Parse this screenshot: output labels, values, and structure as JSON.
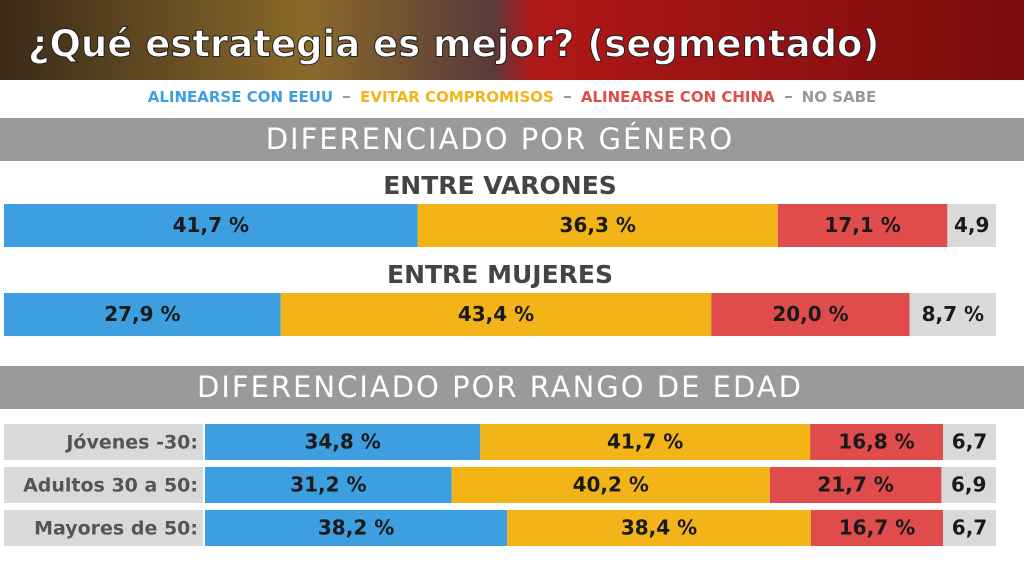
{
  "title": "¿Qué estrategia es mejor? (segmentado)",
  "chart_data": [
    {
      "type": "bar",
      "stacked": true,
      "orientation": "horizontal",
      "title": "DIFERENCIADO POR GÉNERO",
      "xlim": [
        0,
        100
      ],
      "categories": [
        "ENTRE VARONES",
        "ENTRE MUJERES"
      ],
      "series": [
        {
          "name": "ALINEARSE CON EEUU",
          "color": "#3d9fe0",
          "values": [
            41.7,
            27.9
          ],
          "value_labels": [
            "41,7 %",
            "27,9 %"
          ]
        },
        {
          "name": "EVITAR COMPROMISOS",
          "color": "#f2b416",
          "values": [
            36.3,
            43.4
          ],
          "value_labels": [
            "36,3 %",
            "43,4 %"
          ]
        },
        {
          "name": "ALINEARSE CON CHINA",
          "color": "#e04b4b",
          "values": [
            17.1,
            20.0
          ],
          "value_labels": [
            "17,1 %",
            "20,0 %"
          ]
        },
        {
          "name": "NO SABE",
          "color": "#d9d9d9",
          "values": [
            4.9,
            8.7
          ],
          "value_labels": [
            "4,9",
            "8,7 %"
          ]
        }
      ]
    },
    {
      "type": "bar",
      "stacked": true,
      "orientation": "horizontal",
      "title": "DIFERENCIADO POR RANGO DE EDAD",
      "xlim": [
        0,
        100
      ],
      "categories": [
        "Jóvenes -30:",
        "Adultos 30 a 50:",
        "Mayores de 50:"
      ],
      "series": [
        {
          "name": "ALINEARSE CON EEUU",
          "color": "#3d9fe0",
          "values": [
            34.8,
            31.2,
            38.2
          ],
          "value_labels": [
            "34,8 %",
            "31,2 %",
            "38,2 %"
          ]
        },
        {
          "name": "EVITAR COMPROMISOS",
          "color": "#f2b416",
          "values": [
            41.7,
            40.2,
            38.4
          ],
          "value_labels": [
            "41,7 %",
            "40,2 %",
            "38,4 %"
          ]
        },
        {
          "name": "ALINEARSE CON CHINA",
          "color": "#e04b4b",
          "values": [
            16.8,
            21.7,
            16.7
          ],
          "value_labels": [
            "16,8 %",
            "21,7 %",
            "16,7 %"
          ]
        },
        {
          "name": "NO SABE",
          "color": "#d9d9d9",
          "values": [
            6.7,
            6.9,
            6.7
          ],
          "value_labels": [
            "6,7",
            "6,9",
            "6,7"
          ]
        }
      ]
    }
  ]
}
